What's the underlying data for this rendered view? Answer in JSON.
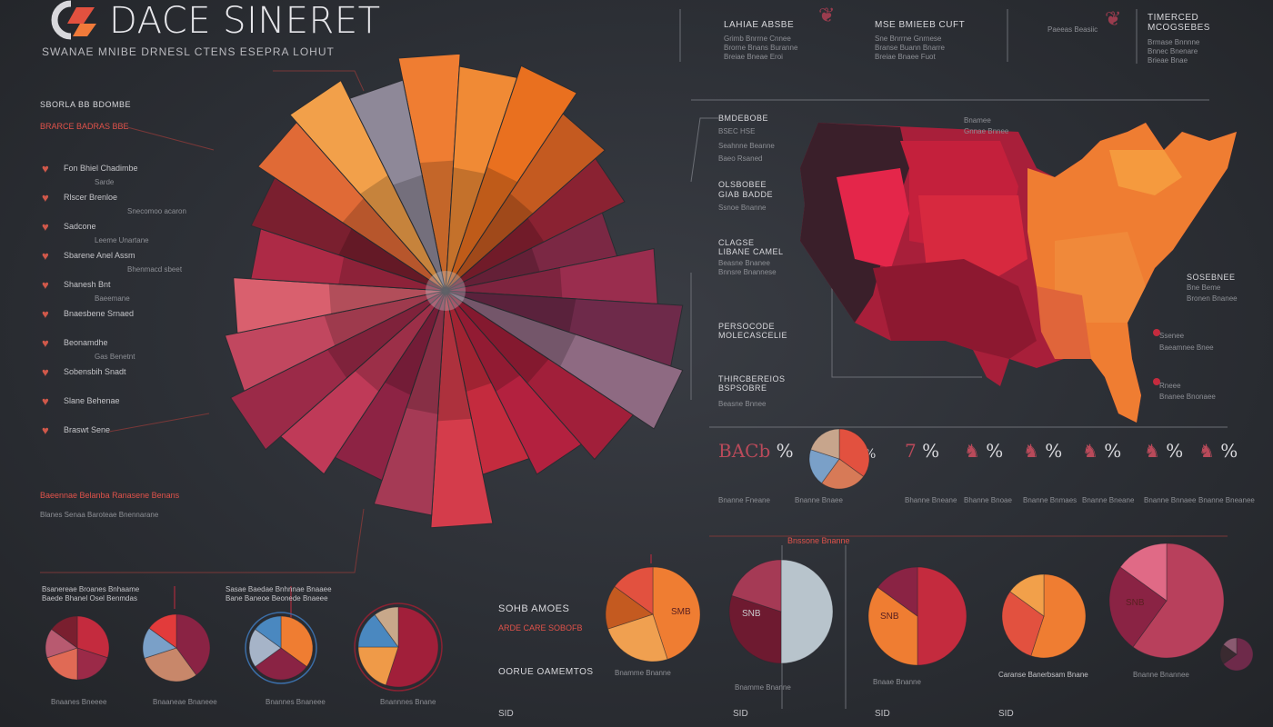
{
  "header": {
    "title": "DACE SINERET",
    "subtitle": "SWANAE MNIBE    DRNESL CTENS ESEPRA LOHUT"
  },
  "left_panel": {
    "heading": "SBORLA BB BDOMBE",
    "heading_red": "BRARCE BADRAS BBE",
    "items": [
      {
        "label": "Fon Bhiel Chadimbe",
        "sub": "Sarde"
      },
      {
        "label": "Rlscer Brenloe",
        "sub": "Snecomoo acaron"
      },
      {
        "label": "Sadcone",
        "sub": "Leeme Unartane"
      },
      {
        "label": "Sbarene Anel Assm",
        "sub": "Bhenmacd sbeet"
      },
      {
        "label": "Shanesh Bnt",
        "sub": "Baeemane"
      },
      {
        "label": "Bnaesbene Srnaed",
        "sub": ""
      },
      {
        "label": "Beonamdhe",
        "sub": "Gas Benetnt"
      },
      {
        "label": "Sobensbih Snadt",
        "sub": ""
      },
      {
        "label": "Slane Behenae",
        "sub": ""
      },
      {
        "label": "Braswt Sene",
        "sub": ""
      }
    ],
    "footer_lines": [
      "Baeennae Belanba Ranasene Benans",
      "Blanes Senaa Baroteae Bnennarane"
    ]
  },
  "top_blocks": [
    {
      "title": "LAHIAE ABSBE",
      "lines": [
        "Grimb Bnrrne Cnnee",
        "Brorne Bnans Buranne",
        "Breiae Bneae Eroi"
      ]
    },
    {
      "title": "MSE BMIEEB CUFT",
      "lines": [
        "Sne Bnrrne Gnrnese",
        "Branse Buann Bnarre",
        "Breiae Bnaee Fuot"
      ]
    },
    {
      "title": "TIMERCED",
      "title2": "MCOGSEBES",
      "side": "Paeeas Beasiic",
      "lines": [
        "Brmase Bnnnne",
        "Bnnec Bnenare",
        "Brieae Bnae"
      ]
    }
  ],
  "map_labels": [
    {
      "title": "BMDEBOBE",
      "lines": [
        "BSEC HSE",
        "Seahnne Beanne",
        "Baeo Rsaned"
      ]
    },
    {
      "title": "OLSBOBEE",
      "title2": "GIAB BADDE",
      "lines": [
        "Ssnoe Bnanne"
      ]
    },
    {
      "title": "CLAGSE",
      "title2": "LIBANE CAMEL",
      "lines": [
        "Beasne Bnanee",
        "Bnnsre Bnannese"
      ]
    },
    {
      "title": "PERSOCODE",
      "title2": "MOLECASCELIE",
      "lines": []
    },
    {
      "title": "THIRCBEREIOS",
      "title2": "BSPSOBRE",
      "lines": [
        "Beasne Bnnee"
      ]
    },
    {
      "title": "Bnamee",
      "lines": [
        "Gnnae Bnnee"
      ]
    },
    {
      "title": "SOSEBNEE",
      "title2": "Bne Beme",
      "lines": [
        "Bronen Bnanee"
      ]
    },
    {
      "title": "Ssenee",
      "lines": [
        "Baeamnee Bnee"
      ]
    },
    {
      "title": "Rneee",
      "lines": [
        "Bnanee Bnonaee"
      ]
    }
  ],
  "percent_row": [
    {
      "glyph": "BACb",
      "value": "%",
      "caption": "Bnanne Fneane"
    },
    {
      "glyph": "",
      "value": "%",
      "caption": "Bnanne Bnaee"
    },
    {
      "glyph": "7",
      "value": "%",
      "caption": "Bhanne Bneane"
    },
    {
      "glyph": "",
      "value": "%",
      "caption": "Bhanne Bnoae"
    },
    {
      "glyph": "",
      "value": "%",
      "caption": "Bnanne Bnmaes"
    },
    {
      "glyph": "",
      "value": "%",
      "caption": "Bnanne Bneane"
    },
    {
      "glyph": "",
      "value": "%",
      "caption": "Bnanne Bnnaee"
    },
    {
      "glyph": "",
      "value": "%",
      "caption": "Bnanne Bneanee"
    }
  ],
  "bottom_left": {
    "caption1": "Bsanereae Broanes Bnhaame",
    "caption1b": "Baede Bhanel Osel Benmdas",
    "caption2": "Sasae Baedae Bnhnnae Bnaaee",
    "caption2b": "Bane Baneoe Beonede Bnaeee",
    "pie_captions": [
      "Bnaanes Bneeee",
      "Bnaaneae Bnaneee",
      "Bnannes Bnaneee",
      "Bnannnes Bnane"
    ]
  },
  "bottom_right": {
    "block1_title": "SOHB AMOES",
    "block1_sub": "ARDE CARE SOBOFB",
    "block2_title": "OORUE OAMEMTOS",
    "top_label": "Bnssone Bnanne",
    "pie_labels": [
      {
        "inner": "SMB",
        "caption": "Bnamme Bnanne"
      },
      {
        "inner": "SNB",
        "caption": "Bnamme Bnanne"
      },
      {
        "inner": "SNB",
        "caption": "Bnaae Bnanne"
      },
      {
        "inner": "",
        "caption": "Caranse Banerbsam Bnane"
      },
      {
        "inner": "SNB",
        "caption": "Bnanne Bnannee"
      }
    ],
    "axis_labels": [
      "SID",
      "SID",
      "SID",
      "SID"
    ]
  },
  "colors": {
    "red": "#c42b3e",
    "orange": "#ef7d32",
    "plum": "#8a2344",
    "grey": "#8e8898"
  },
  "chart_data": [
    {
      "type": "pie",
      "title": "",
      "note": "large radial fan chart (decorative, no numeric labels)",
      "categories": [
        "s1",
        "s2",
        "s3",
        "s4",
        "s5",
        "s6",
        "s7",
        "s8",
        "s9",
        "s10",
        "s11",
        "s12",
        "s13",
        "s14",
        "s15",
        "s16",
        "s17",
        "s18",
        "s19",
        "s20",
        "s21",
        "s22",
        "s23",
        "s24"
      ],
      "values": [
        1,
        1,
        1,
        1,
        1,
        1,
        1,
        1,
        1,
        1,
        1,
        1,
        1,
        1,
        1,
        1,
        1,
        1,
        1,
        1,
        1,
        1,
        1,
        1
      ],
      "radii": [
        0.95,
        0.9,
        0.95,
        0.85,
        0.8,
        0.7,
        0.85,
        0.95,
        1.0,
        0.9,
        0.82,
        0.75,
        0.95,
        0.9,
        0.8,
        0.88,
        0.96,
        0.9,
        0.85,
        0.78,
        0.82,
        0.9,
        0.94,
        0.86
      ]
    },
    {
      "type": "pie",
      "title": "",
      "categories": [
        "a",
        "b",
        "c",
        "d"
      ],
      "values": [
        35,
        25,
        20,
        20
      ]
    },
    {
      "type": "pie",
      "title": "",
      "categories": [
        "a",
        "b",
        "c",
        "d",
        "e"
      ],
      "values": [
        30,
        20,
        20,
        15,
        15
      ]
    },
    {
      "type": "pie",
      "title": "",
      "categories": [
        "a",
        "b",
        "c",
        "d"
      ],
      "values": [
        40,
        30,
        15,
        15
      ]
    },
    {
      "type": "pie",
      "title": "",
      "categories": [
        "a",
        "b",
        "c",
        "d"
      ],
      "values": [
        35,
        30,
        20,
        15
      ]
    },
    {
      "type": "pie",
      "title": "",
      "categories": [
        "a",
        "b",
        "c",
        "d"
      ],
      "values": [
        55,
        20,
        15,
        10
      ]
    },
    {
      "type": "pie",
      "title": "",
      "categories": [
        "a",
        "b",
        "c",
        "d"
      ],
      "values": [
        45,
        25,
        15,
        15
      ]
    },
    {
      "type": "pie",
      "title": "",
      "categories": [
        "a",
        "b",
        "c"
      ],
      "values": [
        50,
        30,
        20
      ]
    },
    {
      "type": "pie",
      "title": "",
      "categories": [
        "a",
        "b",
        "c"
      ],
      "values": [
        50,
        35,
        15
      ]
    },
    {
      "type": "pie",
      "title": "",
      "categories": [
        "a",
        "b",
        "c"
      ],
      "values": [
        55,
        30,
        15
      ]
    },
    {
      "type": "pie",
      "title": "",
      "categories": [
        "a",
        "b",
        "c"
      ],
      "values": [
        60,
        25,
        15
      ]
    },
    {
      "type": "pie",
      "title": "",
      "categories": [
        "a",
        "b",
        "c"
      ],
      "values": [
        65,
        20,
        15
      ]
    }
  ]
}
